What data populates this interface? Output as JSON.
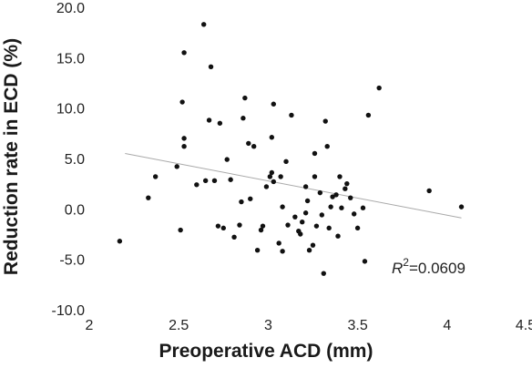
{
  "chart_data": {
    "type": "scatter",
    "xlabel": "Preoperative ACD (mm)",
    "ylabel": "Reduction rate in ECD (%)",
    "xlim": [
      2,
      4.5
    ],
    "ylim": [
      -10,
      20
    ],
    "x_ticks": [
      "2",
      "2.5",
      "3",
      "3.5",
      "4",
      "4.5"
    ],
    "y_ticks": [
      "-10.0",
      "-5.0",
      "0.0",
      "5.0",
      "10.0",
      "15.0",
      "20.0"
    ],
    "grid": false,
    "annotation": {
      "r_symbol": "R",
      "superscript": "2",
      "value_text": "=0.0609"
    },
    "trendline": {
      "x": [
        2.2,
        4.08
      ],
      "y": [
        5.5,
        -0.9
      ],
      "color": "#aaaaaa"
    },
    "point_color": "#111111",
    "points": [
      [
        2.17,
        -3.2
      ],
      [
        2.33,
        1.1
      ],
      [
        2.37,
        3.2
      ],
      [
        2.49,
        4.2
      ],
      [
        2.51,
        -2.1
      ],
      [
        2.52,
        10.6
      ],
      [
        2.53,
        15.5
      ],
      [
        2.53,
        7.0
      ],
      [
        2.53,
        6.2
      ],
      [
        2.6,
        2.4
      ],
      [
        2.64,
        18.3
      ],
      [
        2.65,
        2.8
      ],
      [
        2.67,
        8.8
      ],
      [
        2.68,
        14.1
      ],
      [
        2.7,
        2.8
      ],
      [
        2.72,
        -1.7
      ],
      [
        2.73,
        8.5
      ],
      [
        2.75,
        -1.9
      ],
      [
        2.77,
        4.9
      ],
      [
        2.79,
        2.9
      ],
      [
        2.81,
        -2.8
      ],
      [
        2.84,
        -1.6
      ],
      [
        2.85,
        0.7
      ],
      [
        2.86,
        9.0
      ],
      [
        2.87,
        11.0
      ],
      [
        2.89,
        6.5
      ],
      [
        2.9,
        1.0
      ],
      [
        2.92,
        6.2
      ],
      [
        2.94,
        -4.1
      ],
      [
        2.96,
        -2.1
      ],
      [
        2.97,
        -1.7
      ],
      [
        2.99,
        2.2
      ],
      [
        3.01,
        3.2
      ],
      [
        3.02,
        7.1
      ],
      [
        3.02,
        3.6
      ],
      [
        3.03,
        2.7
      ],
      [
        3.03,
        10.4
      ],
      [
        3.06,
        -3.4
      ],
      [
        3.07,
        3.2
      ],
      [
        3.08,
        0.2
      ],
      [
        3.08,
        -4.2
      ],
      [
        3.1,
        4.7
      ],
      [
        3.11,
        -1.6
      ],
      [
        3.13,
        9.3
      ],
      [
        3.15,
        -0.8
      ],
      [
        3.17,
        -2.2
      ],
      [
        3.18,
        -2.5
      ],
      [
        3.19,
        -1.3
      ],
      [
        3.21,
        -0.4
      ],
      [
        3.21,
        2.2
      ],
      [
        3.22,
        0.8
      ],
      [
        3.23,
        -4.1
      ],
      [
        3.25,
        -3.6
      ],
      [
        3.26,
        3.2
      ],
      [
        3.26,
        5.5
      ],
      [
        3.27,
        -1.7
      ],
      [
        3.29,
        1.6
      ],
      [
        3.3,
        -0.6
      ],
      [
        3.31,
        -6.4
      ],
      [
        3.32,
        8.7
      ],
      [
        3.33,
        6.2
      ],
      [
        3.34,
        -1.9
      ],
      [
        3.35,
        0.2
      ],
      [
        3.36,
        1.2
      ],
      [
        3.38,
        1.4
      ],
      [
        3.39,
        -2.7
      ],
      [
        3.4,
        3.2
      ],
      [
        3.41,
        0.1
      ],
      [
        3.43,
        2.0
      ],
      [
        3.44,
        2.5
      ],
      [
        3.46,
        1.1
      ],
      [
        3.48,
        -0.5
      ],
      [
        3.5,
        -1.9
      ],
      [
        3.53,
        0.1
      ],
      [
        3.54,
        -5.2
      ],
      [
        3.56,
        9.3
      ],
      [
        3.62,
        12.0
      ],
      [
        3.9,
        1.8
      ],
      [
        4.08,
        0.2
      ]
    ]
  }
}
